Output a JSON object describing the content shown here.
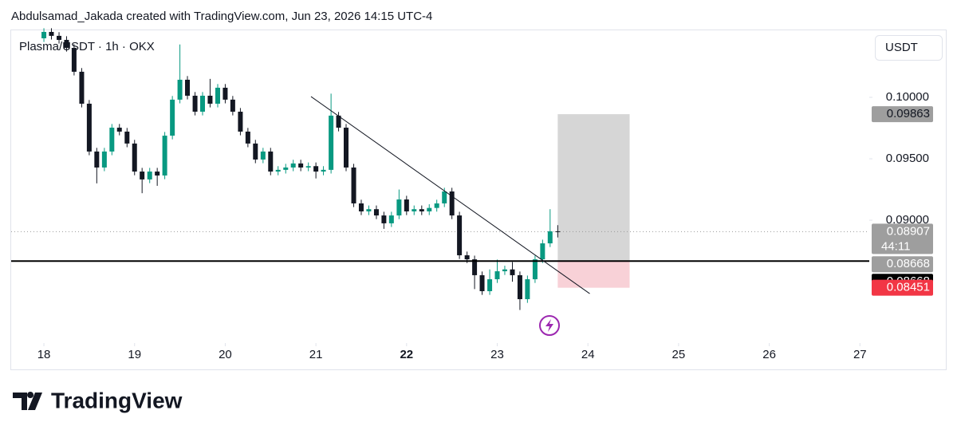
{
  "header": {
    "attribution": "Abdulsamad_Jakada created with TradingView.com, Jun 23, 2026 14:15 UTC-4"
  },
  "chart_data": {
    "type": "candlestick",
    "title": "Plasma/USDT · 1h · OKX",
    "currency": "USDT",
    "x": [
      18,
      18.083,
      18.167,
      18.25,
      18.333,
      18.417,
      18.5,
      18.583,
      18.667,
      18.75,
      18.833,
      18.917,
      19,
      19.083,
      19.167,
      19.25,
      19.333,
      19.417,
      19.5,
      19.583,
      19.667,
      19.75,
      19.833,
      19.917,
      20,
      20.083,
      20.167,
      20.25,
      20.333,
      20.417,
      20.5,
      20.583,
      20.667,
      20.75,
      20.833,
      20.917,
      21,
      21.083,
      21.167,
      21.25,
      21.333,
      21.417,
      21.5,
      21.583,
      21.667,
      21.75,
      21.833,
      21.917,
      22,
      22.083,
      22.167,
      22.25,
      22.333,
      22.417,
      22.5,
      22.583,
      22.667,
      22.75,
      22.833,
      22.917,
      23,
      23.083,
      23.167,
      23.25,
      23.333,
      23.417,
      23.5,
      23.583,
      23.667
    ],
    "open": [
      0.1048,
      0.10532,
      0.105,
      0.10467,
      0.10402,
      0.10208,
      0.09948,
      0.09559,
      0.09429,
      0.09559,
      0.09753,
      0.09721,
      0.09624,
      0.09396,
      0.09332,
      0.09396,
      0.09364,
      0.09688,
      0.09981,
      0.10143,
      0.10013,
      0.09883,
      0.10013,
      0.09948,
      0.10078,
      0.09981,
      0.09883,
      0.09721,
      0.09624,
      0.09494,
      0.09559,
      0.09396,
      0.0941,
      0.09429,
      0.09462,
      0.09429,
      0.0944,
      0.09396,
      0.0941,
      0.09851,
      0.09753,
      0.09429,
      0.09137,
      0.09072,
      0.0909,
      0.09039,
      0.08975,
      0.09039,
      0.09169,
      0.09072,
      0.0909,
      0.09072,
      0.091,
      0.09137,
      0.09234,
      0.09039,
      0.08715,
      0.08682,
      0.08553,
      0.08423,
      0.0852,
      0.08585,
      0.086,
      0.08553,
      0.08358,
      0.0852,
      0.08682,
      0.08812,
      0.0891
    ],
    "high": [
      0.10562,
      0.10562,
      0.1053,
      0.10497,
      0.10432,
      0.10238,
      0.09978,
      0.09589,
      0.09589,
      0.09783,
      0.09783,
      0.09751,
      0.09654,
      0.09426,
      0.09426,
      0.09426,
      0.09718,
      0.10011,
      0.1043,
      0.10173,
      0.10043,
      0.10043,
      0.1015,
      0.10108,
      0.10108,
      0.10011,
      0.09913,
      0.09751,
      0.09654,
      0.09589,
      0.09589,
      0.0944,
      0.09459,
      0.09492,
      0.09492,
      0.0947,
      0.0947,
      0.0944,
      0.1003,
      0.09881,
      0.09783,
      0.09459,
      0.09167,
      0.0912,
      0.0912,
      0.09069,
      0.09069,
      0.0925,
      0.09199,
      0.0912,
      0.0912,
      0.0913,
      0.09167,
      0.09264,
      0.09264,
      0.09069,
      0.08745,
      0.08712,
      0.08583,
      0.086,
      0.0868,
      0.0863,
      0.0866,
      0.08583,
      0.0855,
      0.08712,
      0.08842,
      0.0909,
      0.0896
    ],
    "low": [
      0.1045,
      0.1047,
      0.10437,
      0.10372,
      0.10178,
      0.09918,
      0.09529,
      0.093,
      0.09399,
      0.09529,
      0.09691,
      0.09594,
      0.09366,
      0.0922,
      0.09302,
      0.0928,
      0.09334,
      0.09658,
      0.09951,
      0.09983,
      0.09853,
      0.09853,
      0.09918,
      0.09918,
      0.09951,
      0.09853,
      0.09691,
      0.09594,
      0.09464,
      0.09464,
      0.09366,
      0.09366,
      0.0938,
      0.09399,
      0.09399,
      0.09399,
      0.0934,
      0.09366,
      0.0938,
      0.09723,
      0.09399,
      0.09107,
      0.09042,
      0.09042,
      0.09009,
      0.0893,
      0.08945,
      0.09009,
      0.09042,
      0.09042,
      0.09042,
      0.09042,
      0.0907,
      0.09107,
      0.09009,
      0.08685,
      0.08652,
      0.0844,
      0.08393,
      0.08393,
      0.0849,
      0.08555,
      0.085,
      0.0827,
      0.08328,
      0.0849,
      0.08652,
      0.08782,
      0.0886
    ],
    "close": [
      0.10532,
      0.105,
      0.10467,
      0.10402,
      0.10208,
      0.09948,
      0.09559,
      0.09429,
      0.09559,
      0.09753,
      0.09721,
      0.09624,
      0.09396,
      0.09332,
      0.09396,
      0.09364,
      0.09688,
      0.09981,
      0.10143,
      0.10013,
      0.09883,
      0.10013,
      0.09948,
      0.10078,
      0.09981,
      0.09883,
      0.09721,
      0.09624,
      0.09494,
      0.09559,
      0.09396,
      0.0941,
      0.09429,
      0.09462,
      0.09429,
      0.0944,
      0.09396,
      0.0941,
      0.09851,
      0.09753,
      0.09429,
      0.09137,
      0.09072,
      0.0909,
      0.09039,
      0.08975,
      0.09039,
      0.09169,
      0.09072,
      0.0909,
      0.09072,
      0.091,
      0.09137,
      0.09234,
      0.09039,
      0.08715,
      0.08682,
      0.08553,
      0.08423,
      0.0852,
      0.08585,
      0.086,
      0.08553,
      0.08358,
      0.0852,
      0.08682,
      0.08812,
      0.0891,
      0.08907
    ],
    "up_color": "#089981",
    "down_color": "#131722",
    "xlim": [
      17.639,
      27.103
    ],
    "xticks": [
      18,
      19,
      20,
      21,
      22,
      23,
      24,
      25,
      26,
      27
    ],
    "bold_xtick": 22,
    "ylim": [
      0.08001,
      0.10545
    ],
    "yticks": [
      {
        "value": 0.1,
        "label": "0.10000"
      },
      {
        "value": 0.095,
        "label": "0.09500"
      },
      {
        "value": 0.09,
        "label": "0.09000"
      }
    ],
    "last_price": {
      "value": 0.08907,
      "countdown": "44:11"
    },
    "horizontal_line": {
      "value": 0.08668,
      "color": "#000000"
    },
    "trend_line": {
      "x": [
        20.946,
        24.02
      ],
      "y": [
        0.10006,
        0.08403
      ]
    },
    "position": {
      "x": [
        23.667,
        24.46
      ],
      "target": 0.09863,
      "entry": 0.08668,
      "stop": 0.08451
    }
  },
  "footer": {
    "logo": "TradingView"
  }
}
